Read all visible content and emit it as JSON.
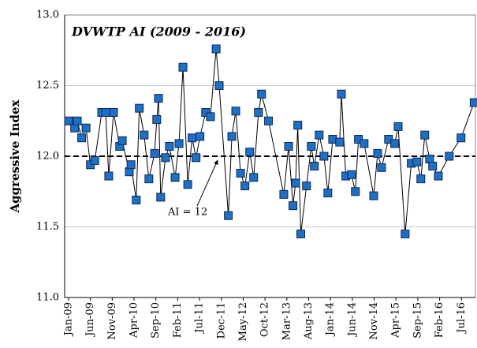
{
  "chart_data": {
    "type": "line",
    "title": "DVWTP AI (2009 - 2016)",
    "y_label": "Aggressive Index",
    "annotation": "AI = 12",
    "reference_line": 12,
    "grid": true,
    "x": [
      0,
      1.4,
      2,
      3,
      4,
      5,
      6,
      7.6,
      8.5,
      9.2,
      10.3,
      11.7,
      12.3,
      13.9,
      14.3,
      15.5,
      16.2,
      17.3,
      18.4,
      19.7,
      20.2,
      20.6,
      21.1,
      22.2,
      23.1,
      24.4,
      25.3,
      26.2,
      27.3,
      28.3,
      29.2,
      30.1,
      31.4,
      32.5,
      33.8,
      34.5,
      36.6,
      37.4,
      38.3,
      39.4,
      40.4,
      41.5,
      42.4,
      43.5,
      44.2,
      45.8,
      49.3,
      50.4,
      51.4,
      52,
      52.5,
      53.2,
      54.5,
      55.6,
      56.3,
      57.4,
      58.5,
      59.4,
      60.5,
      62.1,
      62.5,
      63.5,
      64.8,
      65.7,
      66.4,
      67.7,
      69.9,
      70.8,
      71.7,
      73.3,
      74.7,
      75.5,
      77.1,
      78.5,
      79.8,
      80.7,
      81.6,
      82.7,
      83.4,
      84.7,
      87.2,
      89.9,
      92.9
    ],
    "series": [
      {
        "name": "AI",
        "color": "#1f6fc5",
        "line_color": "#000000",
        "values": [
          12.25,
          12.2,
          12.25,
          12.13,
          12.2,
          11.94,
          11.97,
          12.31,
          12.31,
          11.86,
          12.31,
          12.07,
          12.11,
          11.89,
          11.94,
          11.69,
          12.34,
          12.15,
          11.84,
          12.02,
          12.26,
          12.41,
          11.71,
          11.99,
          12.07,
          11.85,
          12.09,
          12.63,
          11.8,
          12.13,
          11.99,
          12.14,
          12.31,
          12.28,
          12.76,
          12.5,
          11.58,
          12.14,
          12.32,
          11.88,
          11.79,
          12.03,
          11.85,
          12.31,
          12.44,
          12.25,
          11.73,
          12.07,
          11.65,
          11.81,
          12.22,
          11.45,
          11.79,
          12.07,
          11.93,
          12.15,
          12,
          11.74,
          12.12,
          12.1,
          12.44,
          11.86,
          11.87,
          11.75,
          12.12,
          12.09,
          11.72,
          12.02,
          11.92,
          12.12,
          12.09,
          12.21,
          11.45,
          11.95,
          11.96,
          11.84,
          12.15,
          11.98,
          11.93,
          11.86,
          12,
          12.13,
          12.38
        ]
      }
    ],
    "xlim": [
      -0.9,
      93.2
    ],
    "xticks": [
      {
        "value": 0,
        "label": "Jan-09"
      },
      {
        "value": 5,
        "label": "Jun-09"
      },
      {
        "value": 10,
        "label": "Nov-09"
      },
      {
        "value": 15,
        "label": "Apr-10"
      },
      {
        "value": 20,
        "label": "Sep-10"
      },
      {
        "value": 25,
        "label": "Feb-11"
      },
      {
        "value": 30,
        "label": "Jul-11"
      },
      {
        "value": 35,
        "label": "Dec-11"
      },
      {
        "value": 40,
        "label": "May-12"
      },
      {
        "value": 45,
        "label": "Oct-12"
      },
      {
        "value": 50,
        "label": "Mar-13"
      },
      {
        "value": 55,
        "label": "Aug-13"
      },
      {
        "value": 60,
        "label": "Jan-14"
      },
      {
        "value": 65,
        "label": "Jun-14"
      },
      {
        "value": 70,
        "label": "Nov-14"
      },
      {
        "value": 75,
        "label": "Apr-15"
      },
      {
        "value": 80,
        "label": "Sep-15"
      },
      {
        "value": 85,
        "label": "Feb-16"
      },
      {
        "value": 90,
        "label": "Jul-16"
      }
    ],
    "ylim": [
      11,
      13
    ],
    "yticks": [
      {
        "value": 11,
        "label": "11.0"
      },
      {
        "value": 11.5,
        "label": "11.5"
      },
      {
        "value": 12,
        "label": "12.0"
      },
      {
        "value": 12.5,
        "label": "12.5"
      },
      {
        "value": 13,
        "label": "13.0"
      }
    ]
  }
}
